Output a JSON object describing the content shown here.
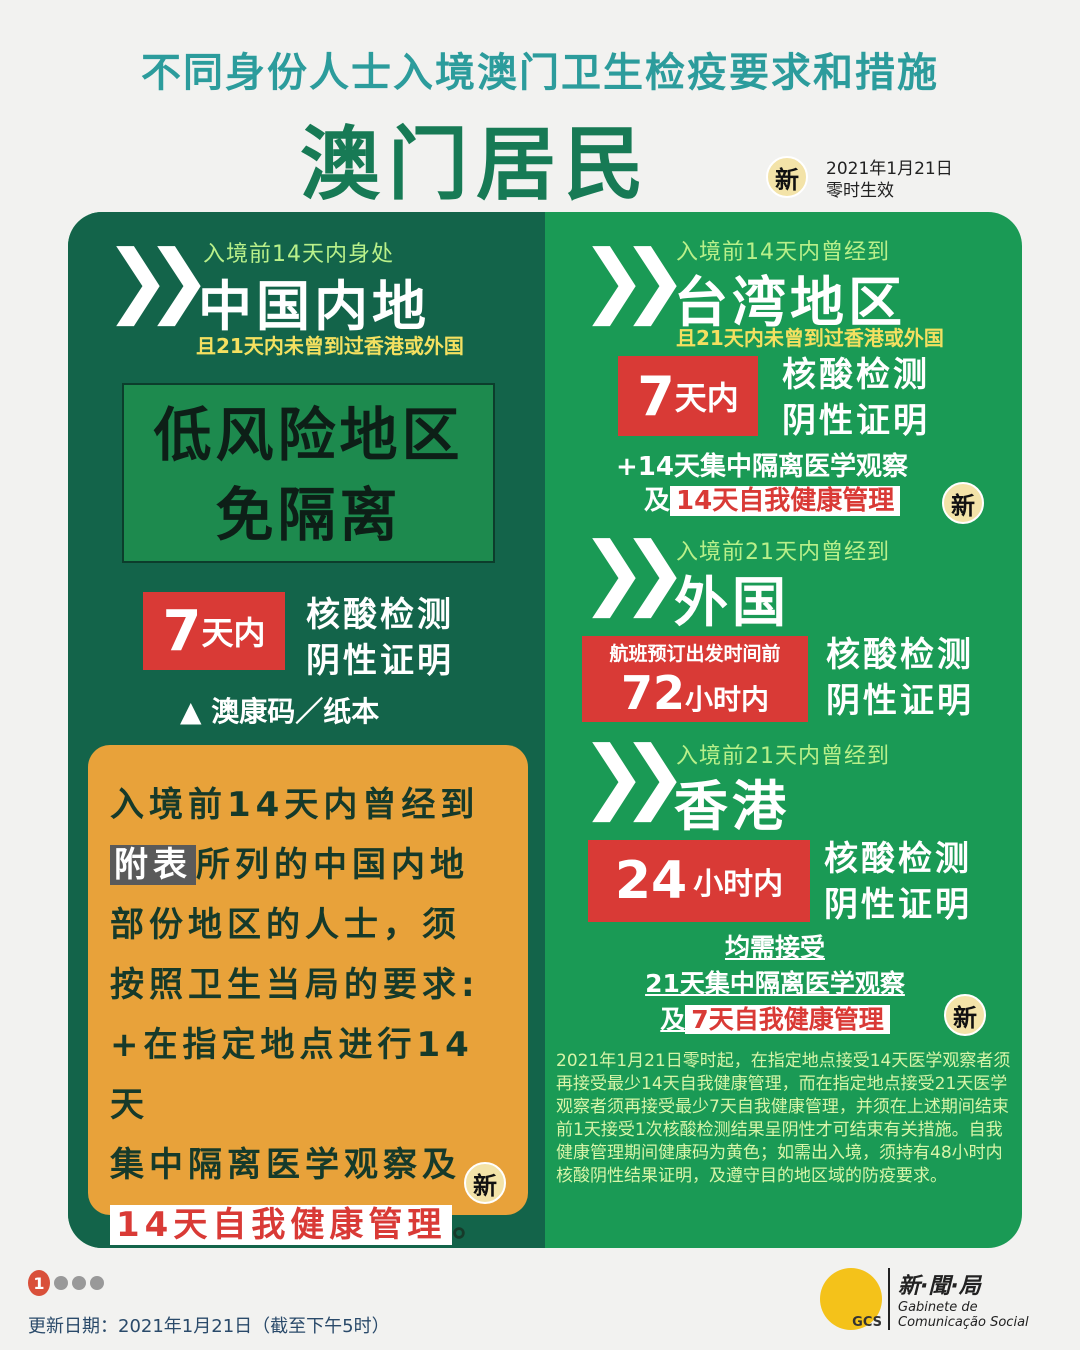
{
  "header": {
    "title": "不同身份人士入境澳门卫生检疫要求和措施",
    "subtitle": "澳门居民",
    "new_badge": "新",
    "effective_date": "2021年1月21日",
    "effective_note": "零时生效"
  },
  "mainland": {
    "pre": "入境前14天内身处",
    "place": "中国内地",
    "cond": "且21天内未曾到过香港或外国",
    "low_risk_1": "低风险地区",
    "low_risk_2": "免隔离",
    "days": "7",
    "days_unit": "天内",
    "test_1": "核酸检测",
    "test_2": "阴性证明",
    "code": "▲ 澳康码／纸本"
  },
  "orange": {
    "l1": "入境前14天内曾经到",
    "hl": "附表",
    "l2": "所列的中国内地",
    "l3": "部份地区的人士，须",
    "l4": "按照卫生当局的要求:",
    "l5": "+在指定地点进行14天",
    "l6": "集中隔离医学观察及",
    "l7": "14天自我健康管理",
    "end": "。",
    "new_badge": "新"
  },
  "taiwan": {
    "pre": "入境前14天内曾经到",
    "place": "台湾地区",
    "cond": "且21天内未曾到过香港或外国",
    "days": "7",
    "days_unit": "天内",
    "test_1": "核酸检测",
    "test_2": "阴性证明",
    "q1": "+14天集中隔离医学观察",
    "q2a": "及",
    "q2b": "14天自我健康管理",
    "new_badge": "新"
  },
  "foreign": {
    "pre": "入境前21天内曾经到",
    "place": "外国",
    "flight": "航班预订出发时间前",
    "hours": "72",
    "hours_unit": "小时内",
    "test_1": "核酸检测",
    "test_2": "阴性证明"
  },
  "hk": {
    "pre": "入境前21天内曾经到",
    "place": "香港",
    "hours": "24",
    "hours_unit": "小时内",
    "test_1": "核酸检测",
    "test_2": "阴性证明",
    "r1": "均需接受",
    "r2": "21天集中隔离医学观察",
    "r3a": "及",
    "r3b": "7天自我健康管理",
    "new_badge": "新"
  },
  "note": "2021年1月21日零时起，在指定地点接受14天医学观察者须再接受最少14天自我健康管理，而在指定地点接受21天医学观察者须再接受最少7天自我健康管理，并须在上述期间结束前1天接受1次核酸检测结果呈阴性才可结束有关措施。自我健康管理期间健康码为黄色；如需出入境，须持有48小时内核酸阴性结果证明，及遵守目的地区域的防疫要求。",
  "footer": {
    "page": "1",
    "updated": "更新日期：2021年1月21日（截至下午5时）",
    "logo_cn": "新·聞·局",
    "logo_pt1": "Gabinete de",
    "logo_pt2": "Comunicação Social",
    "logo_mark": "GCS"
  },
  "colors": {
    "left_panel": "#13644a",
    "right_panel": "#1a9a55",
    "orange": "#e8a23a",
    "red": "#d93a36",
    "title": "#2c9c9c"
  }
}
